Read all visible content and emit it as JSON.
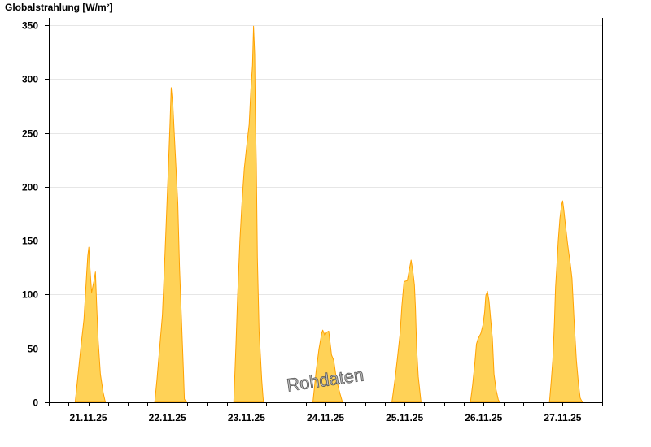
{
  "chart_data": {
    "type": "area",
    "title": "Globalstrahlung [W/m²]",
    "xlabel": "",
    "ylabel": "Globalstrahlung [W/m²]",
    "ylim": [
      0,
      350
    ],
    "yticks": [
      0,
      50,
      100,
      150,
      200,
      250,
      300,
      350
    ],
    "xlim": [
      "21.11.25 00:00",
      "28.11.25 00:00"
    ],
    "xtick_labels": [
      "21.11.25",
      "22.11.25",
      "23.11.25",
      "24.11.25",
      "25.11.25",
      "26.11.25",
      "27.11.25"
    ],
    "grid": true,
    "watermark": "Rohdaten",
    "colors": {
      "fill": "#ffd257",
      "line": "#ffa200",
      "grid": "#e6e6e6"
    },
    "series": [
      {
        "date": "21.11.25",
        "points": [
          [
            "08:00",
            0
          ],
          [
            "09:00",
            29
          ],
          [
            "09:50",
            54
          ],
          [
            "10:40",
            77
          ],
          [
            "11:30",
            119
          ],
          [
            "11:50",
            136
          ],
          [
            "12:10",
            144
          ],
          [
            "12:30",
            124
          ],
          [
            "13:00",
            102
          ],
          [
            "13:40",
            112
          ],
          [
            "14:10",
            121
          ],
          [
            "14:30",
            92
          ],
          [
            "15:00",
            57
          ],
          [
            "15:40",
            26
          ],
          [
            "16:30",
            9
          ],
          [
            "17:10",
            0
          ]
        ]
      },
      {
        "date": "22.11.25",
        "points": [
          [
            "08:10",
            0
          ],
          [
            "08:50",
            21
          ],
          [
            "10:30",
            81
          ],
          [
            "11:20",
            142
          ],
          [
            "12:20",
            221
          ],
          [
            "12:50",
            262
          ],
          [
            "13:10",
            292
          ],
          [
            "13:40",
            275
          ],
          [
            "14:20",
            234
          ],
          [
            "15:10",
            185
          ],
          [
            "15:40",
            126
          ],
          [
            "16:20",
            72
          ],
          [
            "16:50",
            32
          ],
          [
            "17:10",
            3
          ],
          [
            "17:50",
            0
          ]
        ]
      },
      {
        "date": "23.11.25",
        "points": [
          [
            "08:10",
            0
          ],
          [
            "08:50",
            54
          ],
          [
            "09:20",
            100
          ],
          [
            "10:00",
            150
          ],
          [
            "10:40",
            187
          ],
          [
            "11:20",
            217
          ],
          [
            "12:10",
            240
          ],
          [
            "12:50",
            258
          ],
          [
            "13:20",
            290
          ],
          [
            "13:50",
            313
          ],
          [
            "14:10",
            349
          ],
          [
            "14:30",
            323
          ],
          [
            "14:40",
            273
          ],
          [
            "15:00",
            221
          ],
          [
            "15:20",
            134
          ],
          [
            "15:50",
            66
          ],
          [
            "16:40",
            20
          ],
          [
            "17:00",
            6
          ],
          [
            "17:10",
            0
          ]
        ]
      },
      {
        "date": "24.11.25",
        "points": [
          [
            "08:10",
            0
          ],
          [
            "09:10",
            29
          ],
          [
            "10:00",
            49
          ],
          [
            "10:50",
            64
          ],
          [
            "11:10",
            67
          ],
          [
            "11:50",
            62
          ],
          [
            "12:20",
            65
          ],
          [
            "13:00",
            66
          ],
          [
            "13:50",
            44
          ],
          [
            "14:30",
            39
          ],
          [
            "15:20",
            21
          ],
          [
            "16:20",
            9
          ],
          [
            "17:10",
            0
          ]
        ]
      },
      {
        "date": "25.11.25",
        "points": [
          [
            "08:10",
            0
          ],
          [
            "09:00",
            19
          ],
          [
            "09:50",
            41
          ],
          [
            "10:40",
            64
          ],
          [
            "11:10",
            89
          ],
          [
            "11:50",
            112
          ],
          [
            "12:50",
            113
          ],
          [
            "13:30",
            124
          ],
          [
            "14:00",
            132
          ],
          [
            "14:30",
            122
          ],
          [
            "15:00",
            109
          ],
          [
            "15:20",
            87
          ],
          [
            "15:40",
            51
          ],
          [
            "16:10",
            24
          ],
          [
            "17:00",
            0
          ]
        ]
      },
      {
        "date": "26.11.25",
        "points": [
          [
            "08:00",
            0
          ],
          [
            "08:40",
            16
          ],
          [
            "09:20",
            36
          ],
          [
            "09:50",
            54
          ],
          [
            "10:20",
            59
          ],
          [
            "11:10",
            64
          ],
          [
            "11:50",
            72
          ],
          [
            "12:20",
            84
          ],
          [
            "12:40",
            99
          ],
          [
            "13:10",
            103
          ],
          [
            "13:40",
            94
          ],
          [
            "14:00",
            82
          ],
          [
            "14:40",
            59
          ],
          [
            "15:10",
            26
          ],
          [
            "15:50",
            11
          ],
          [
            "16:30",
            2
          ],
          [
            "17:00",
            0
          ]
        ]
      },
      {
        "date": "27.11.25",
        "points": [
          [
            "08:00",
            0
          ],
          [
            "08:30",
            19
          ],
          [
            "09:00",
            39
          ],
          [
            "09:30",
            74
          ],
          [
            "09:50",
            107
          ],
          [
            "10:10",
            123
          ],
          [
            "10:40",
            150
          ],
          [
            "11:10",
            171
          ],
          [
            "11:40",
            183
          ],
          [
            "12:00",
            187
          ],
          [
            "12:20",
            179
          ],
          [
            "12:50",
            165
          ],
          [
            "13:30",
            147
          ],
          [
            "14:20",
            128
          ],
          [
            "14:50",
            115
          ],
          [
            "15:30",
            74
          ],
          [
            "16:10",
            39
          ],
          [
            "16:50",
            16
          ],
          [
            "17:20",
            4
          ],
          [
            "18:00",
            0
          ]
        ]
      }
    ]
  }
}
